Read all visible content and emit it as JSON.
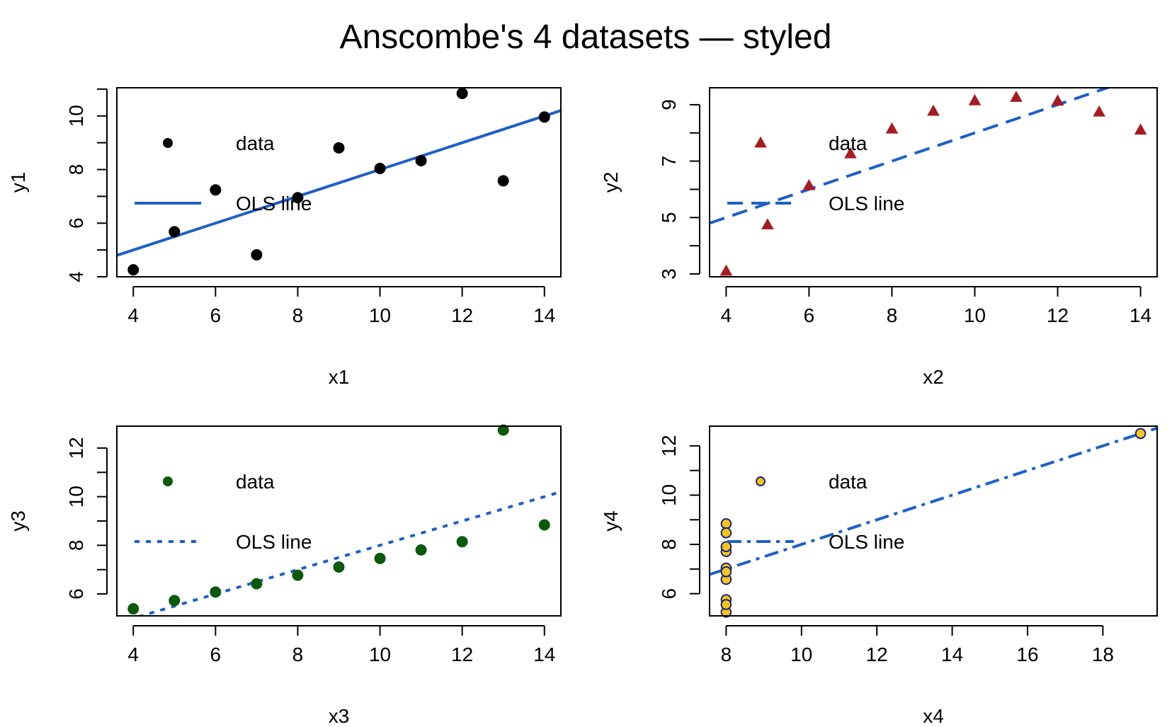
{
  "title": "Anscombe's 4 datasets — styled",
  "chart_data": [
    {
      "type": "scatter",
      "xlabel": "x1",
      "ylabel": "y1",
      "xlim": [
        3.6,
        14.4
      ],
      "ylim": [
        4.0,
        11.05
      ],
      "xticks": [
        4,
        6,
        8,
        10,
        12,
        14
      ],
      "yticks": [
        4,
        6,
        8,
        10
      ],
      "x": [
        10,
        8,
        13,
        9,
        11,
        14,
        6,
        4,
        12,
        7,
        5
      ],
      "y": [
        8.04,
        6.95,
        7.58,
        8.81,
        8.33,
        9.96,
        7.24,
        4.26,
        10.84,
        4.82,
        5.68
      ],
      "marker": "filled-circle",
      "marker_color": "#000000",
      "line": {
        "intercept": 3.0,
        "slope": 0.5,
        "style": "solid",
        "color": "#1f5fc6"
      },
      "legend": {
        "position": "top-left",
        "entries": [
          "data",
          "OLS line"
        ]
      }
    },
    {
      "type": "scatter",
      "xlabel": "x2",
      "ylabel": "y2",
      "xlim": [
        3.6,
        14.4
      ],
      "ylim": [
        2.9,
        9.6
      ],
      "xticks": [
        4,
        6,
        8,
        10,
        12,
        14
      ],
      "yticks": [
        3,
        5,
        7,
        9
      ],
      "x": [
        10,
        8,
        13,
        9,
        11,
        14,
        6,
        4,
        12,
        7,
        5
      ],
      "y": [
        9.14,
        8.14,
        8.74,
        8.77,
        9.26,
        8.1,
        6.13,
        3.1,
        9.13,
        7.26,
        4.74
      ],
      "marker": "filled-triangle",
      "marker_color": "#a51c24",
      "line": {
        "intercept": 3.0,
        "slope": 0.5,
        "style": "dashed",
        "color": "#1f5fc6"
      },
      "legend": {
        "position": "top-left",
        "entries": [
          "data",
          "OLS line"
        ]
      }
    },
    {
      "type": "scatter",
      "xlabel": "x3",
      "ylabel": "y3",
      "xlim": [
        3.6,
        14.4
      ],
      "ylim": [
        5.1,
        12.9
      ],
      "xticks": [
        4,
        6,
        8,
        10,
        12,
        14
      ],
      "yticks": [
        6,
        8,
        10,
        12
      ],
      "x": [
        10,
        8,
        13,
        9,
        11,
        14,
        6,
        4,
        12,
        7,
        5
      ],
      "y": [
        7.46,
        6.77,
        12.74,
        7.11,
        7.81,
        8.84,
        6.08,
        5.39,
        8.15,
        6.42,
        5.73
      ],
      "marker": "filled-circle",
      "marker_color": "#0b5a0b",
      "line": {
        "intercept": 3.0,
        "slope": 0.5,
        "style": "dotted",
        "color": "#1f5fc6"
      },
      "legend": {
        "position": "top-left",
        "entries": [
          "data",
          "OLS line"
        ]
      }
    },
    {
      "type": "scatter",
      "xlabel": "x4",
      "ylabel": "y4",
      "xlim": [
        7.56,
        19.44
      ],
      "ylim": [
        5.1,
        12.8
      ],
      "xticks": [
        8,
        10,
        12,
        14,
        16,
        18
      ],
      "yticks": [
        6,
        8,
        10,
        12
      ],
      "x": [
        8,
        8,
        8,
        8,
        8,
        8,
        8,
        19,
        8,
        8,
        8
      ],
      "y": [
        6.58,
        5.76,
        7.71,
        8.84,
        8.47,
        7.04,
        5.25,
        12.5,
        5.56,
        7.91,
        6.89
      ],
      "marker": "outlined-circle",
      "marker_color": "#f5c518",
      "marker_edge": "#1a237e",
      "line": {
        "intercept": 3.0,
        "slope": 0.5,
        "style": "dashdot",
        "color": "#1f5fc6"
      },
      "legend": {
        "position": "top-left",
        "entries": [
          "data",
          "OLS line"
        ]
      }
    }
  ]
}
